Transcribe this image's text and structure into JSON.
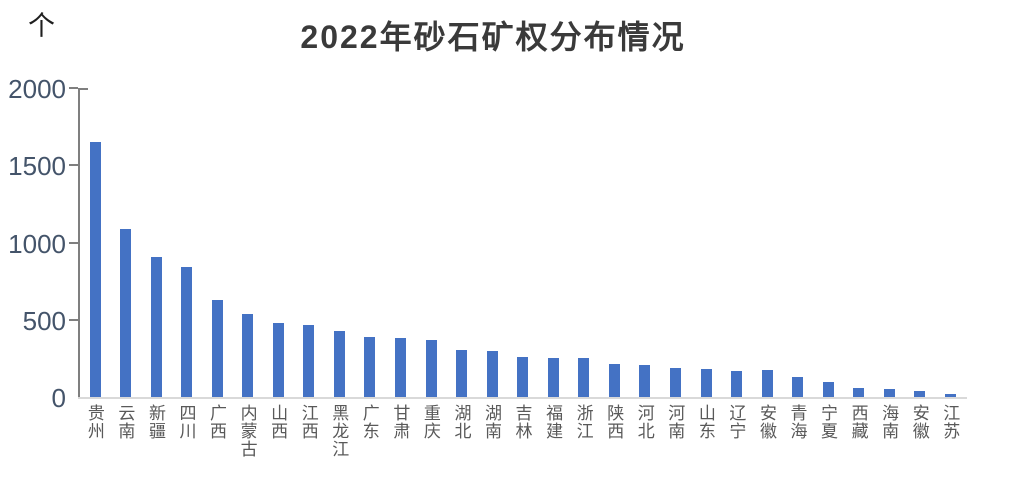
{
  "header": {
    "title": "2022年砂石矿权分布情况",
    "unit_label": "个"
  },
  "colors": {
    "bar": "#4472C4",
    "axis_line": "#7F7F7F",
    "baseline": "#D9D9D9",
    "title_text": "#3A3A3A",
    "y_tick_text": "#44546A",
    "x_label_text": "#595959",
    "background": "#FFFFFF"
  },
  "chart_data": {
    "type": "bar",
    "title": "2022年砂石矿权分布情况",
    "unit": "个",
    "xlabel": "",
    "ylabel": "个",
    "ylim": [
      0,
      2000
    ],
    "y_ticks": [
      0,
      500,
      1000,
      1500,
      2000
    ],
    "grid": false,
    "legend_position": "none",
    "bar_color": "#4472C4",
    "categories": [
      "贵州",
      "云南",
      "新疆",
      "四川",
      "广西",
      "内蒙古",
      "山西",
      "江西",
      "黑龙江",
      "广东",
      "甘肃",
      "重庆",
      "湖北",
      "湖南",
      "吉林",
      "福建",
      "浙江",
      "陕西",
      "河北",
      "河南",
      "山东",
      "辽宁",
      "安徽",
      "青海",
      "宁夏",
      "西藏",
      "海南",
      "安徽",
      "江苏"
    ],
    "values": [
      1650,
      1090,
      905,
      840,
      625,
      540,
      480,
      465,
      425,
      390,
      380,
      370,
      305,
      295,
      260,
      250,
      250,
      215,
      210,
      190,
      180,
      170,
      175,
      130,
      95,
      60,
      55,
      40,
      20
    ]
  }
}
